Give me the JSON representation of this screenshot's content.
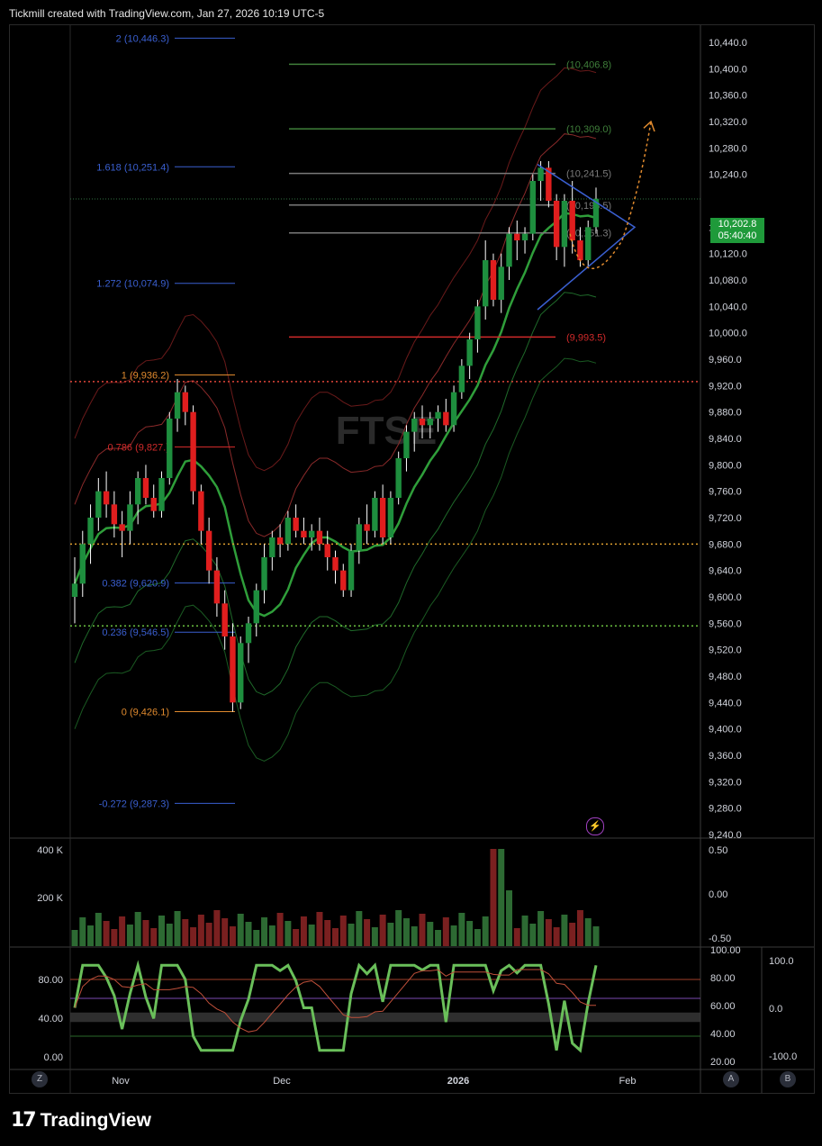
{
  "header": {
    "title": "Tickmill created with TradingView.com, Jan 27, 2026 10:19 UTC-5"
  },
  "watermark": "FTSE",
  "footer": {
    "brand": "TradingView"
  },
  "current_price": {
    "value": "10,202.8",
    "countdown": "05:40:40"
  },
  "buttons": {
    "z": "Z",
    "a": "A",
    "b": "B"
  },
  "colors": {
    "up": "#1e8e3e",
    "down": "#e01e1e",
    "fib_blue": "#3a5fd0",
    "fib_orange": "#e08a2e",
    "fib_green": "#3f7f3a",
    "fib_red": "#d02a2a",
    "accent": "#1f9a3a"
  },
  "chart_data": {
    "type": "candlestick",
    "symbol": "FTSE",
    "x_axis": {
      "ticks": [
        "Nov",
        "Dec",
        "2026",
        "Feb"
      ]
    },
    "price_axis": {
      "ticks": [
        10440,
        10400,
        10360,
        10320,
        10280,
        10240,
        10160,
        10120,
        10080,
        10040,
        10000,
        9960,
        9920,
        9880,
        9840,
        9800,
        9760,
        9720,
        9680,
        9640,
        9600,
        9560,
        9520,
        9480,
        9440,
        9400,
        9360,
        9320,
        9280,
        9240
      ],
      "tick_labels": [
        "10,440.0",
        "10,400.0",
        "10,360.0",
        "10,320.0",
        "10,280.0",
        "10,240.0",
        "10,160.0",
        "10,120.0",
        "10,080.0",
        "10,040.0",
        "10,000.0",
        "9,960.0",
        "9,920.0",
        "9,880.0",
        "9,840.0",
        "9,800.0",
        "9,760.0",
        "9,720.0",
        "9,680.0",
        "9,640.0",
        "9,600.0",
        "9,560.0",
        "9,520.0",
        "9,480.0",
        "9,440.0",
        "9,400.0",
        "9,360.0",
        "9,320.0",
        "9,280.0",
        "9,240.0"
      ],
      "range": [
        9240,
        10460
      ]
    },
    "fib_left": [
      {
        "label": "2 (10,446.3)",
        "value": 10446.3,
        "color": "#3a5fd0"
      },
      {
        "label": "1.618 (10,251.4)",
        "value": 10251.4,
        "color": "#3a5fd0"
      },
      {
        "label": "1.272 (10,074.9)",
        "value": 10074.9,
        "color": "#3a5fd0"
      },
      {
        "label": "1 (9,936.2)",
        "value": 9936.2,
        "color": "#e08a2e"
      },
      {
        "label": "0.786 (9,827.)",
        "value": 9827,
        "color": "#d02a2a"
      },
      {
        "label": "0.382 (9,620.9)",
        "value": 9620.9,
        "color": "#3a5fd0"
      },
      {
        "label": "0.236 (9,546.5)",
        "value": 9546.5,
        "color": "#3a5fd0"
      },
      {
        "label": "0 (9,426.1)",
        "value": 9426.1,
        "color": "#e08a2e"
      },
      {
        "label": "-0.272 (9,287.3)",
        "value": 9287.3,
        "color": "#3a5fd0"
      }
    ],
    "fib_right": [
      {
        "label": "(10,406.8)",
        "value": 10406.8,
        "color": "#3f7f3a"
      },
      {
        "label": "(10,309.0)",
        "value": 10309.0,
        "color": "#3f7f3a"
      },
      {
        "label": "(10,241.5)",
        "value": 10241.5,
        "color": "#7a7a7a"
      },
      {
        "label": "(10,193.5)",
        "value": 10193.5,
        "color": "#7a7a7a"
      },
      {
        "label": "(10,151.3)",
        "value": 10151.3,
        "color": "#7a7a7a"
      },
      {
        "label": "(9,993.5)",
        "value": 9993.5,
        "color": "#d02a2a"
      }
    ],
    "horizontal_lines": [
      {
        "value": 9926,
        "color": "#e0453a",
        "style": "dotted"
      },
      {
        "value": 9680,
        "color": "#e0a030",
        "style": "dotted"
      },
      {
        "value": 9556,
        "color": "#6abf40",
        "style": "dotted"
      }
    ],
    "candles": [
      [
        9600,
        9660,
        9560,
        9620
      ],
      [
        9620,
        9700,
        9600,
        9680
      ],
      [
        9680,
        9740,
        9650,
        9720
      ],
      [
        9720,
        9780,
        9700,
        9760
      ],
      [
        9760,
        9790,
        9720,
        9740
      ],
      [
        9740,
        9760,
        9690,
        9710
      ],
      [
        9710,
        9730,
        9660,
        9700
      ],
      [
        9700,
        9760,
        9680,
        9740
      ],
      [
        9740,
        9790,
        9710,
        9780
      ],
      [
        9780,
        9800,
        9740,
        9750
      ],
      [
        9750,
        9770,
        9720,
        9730
      ],
      [
        9730,
        9790,
        9720,
        9780
      ],
      [
        9780,
        9880,
        9770,
        9870
      ],
      [
        9870,
        9930,
        9850,
        9910
      ],
      [
        9910,
        9920,
        9860,
        9880
      ],
      [
        9880,
        9890,
        9740,
        9760
      ],
      [
        9760,
        9770,
        9680,
        9700
      ],
      [
        9700,
        9720,
        9620,
        9640
      ],
      [
        9640,
        9660,
        9570,
        9590
      ],
      [
        9590,
        9610,
        9520,
        9540
      ],
      [
        9540,
        9560,
        9426,
        9440
      ],
      [
        9440,
        9540,
        9430,
        9530
      ],
      [
        9530,
        9570,
        9500,
        9560
      ],
      [
        9560,
        9620,
        9540,
        9610
      ],
      [
        9610,
        9680,
        9590,
        9660
      ],
      [
        9660,
        9700,
        9640,
        9690
      ],
      [
        9690,
        9710,
        9660,
        9680
      ],
      [
        9680,
        9730,
        9670,
        9720
      ],
      [
        9720,
        9740,
        9690,
        9700
      ],
      [
        9700,
        9720,
        9680,
        9690
      ],
      [
        9690,
        9710,
        9670,
        9700
      ],
      [
        9700,
        9720,
        9670,
        9680
      ],
      [
        9680,
        9700,
        9640,
        9660
      ],
      [
        9660,
        9670,
        9620,
        9640
      ],
      [
        9640,
        9650,
        9600,
        9610
      ],
      [
        9610,
        9680,
        9600,
        9670
      ],
      [
        9670,
        9720,
        9650,
        9710
      ],
      [
        9710,
        9740,
        9680,
        9700
      ],
      [
        9700,
        9760,
        9690,
        9750
      ],
      [
        9750,
        9770,
        9680,
        9690
      ],
      [
        9690,
        9760,
        9680,
        9750
      ],
      [
        9750,
        9820,
        9740,
        9810
      ],
      [
        9810,
        9860,
        9790,
        9850
      ],
      [
        9850,
        9880,
        9820,
        9870
      ],
      [
        9870,
        9890,
        9840,
        9860
      ],
      [
        9860,
        9880,
        9840,
        9870
      ],
      [
        9870,
        9890,
        9850,
        9880
      ],
      [
        9880,
        9900,
        9850,
        9860
      ],
      [
        9860,
        9920,
        9850,
        9910
      ],
      [
        9910,
        9960,
        9900,
        9950
      ],
      [
        9950,
        10000,
        9930,
        9990
      ],
      [
        9990,
        10050,
        9970,
        10040
      ],
      [
        10040,
        10140,
        10020,
        10110
      ],
      [
        10110,
        10120,
        10040,
        10050
      ],
      [
        10050,
        10120,
        10030,
        10100
      ],
      [
        10100,
        10160,
        10080,
        10150
      ],
      [
        10150,
        10170,
        10110,
        10140
      ],
      [
        10140,
        10160,
        10120,
        10150
      ],
      [
        10150,
        10240,
        10140,
        10230
      ],
      [
        10230,
        10260,
        10200,
        10250
      ],
      [
        10250,
        10260,
        10190,
        10200
      ],
      [
        10200,
        10210,
        10110,
        10130
      ],
      [
        10130,
        10210,
        10100,
        10200
      ],
      [
        10200,
        10230,
        10120,
        10140
      ],
      [
        10140,
        10160,
        10100,
        10110
      ],
      [
        10110,
        10170,
        10100,
        10160
      ],
      [
        10160,
        10220,
        10150,
        10203
      ]
    ],
    "volume": {
      "axis": [
        "400 K",
        "200 K"
      ],
      "axis_right": [
        "0.50",
        "0.00",
        "-0.50"
      ]
    },
    "oscillator": {
      "axis_left": [
        "80.00",
        "40.00",
        "0.00"
      ],
      "axis_right": [
        "100.00",
        "80.00",
        "60.00",
        "40.00",
        "20.00"
      ],
      "axis_far_right": [
        "100.0",
        "0.0",
        "-100.0"
      ]
    }
  }
}
